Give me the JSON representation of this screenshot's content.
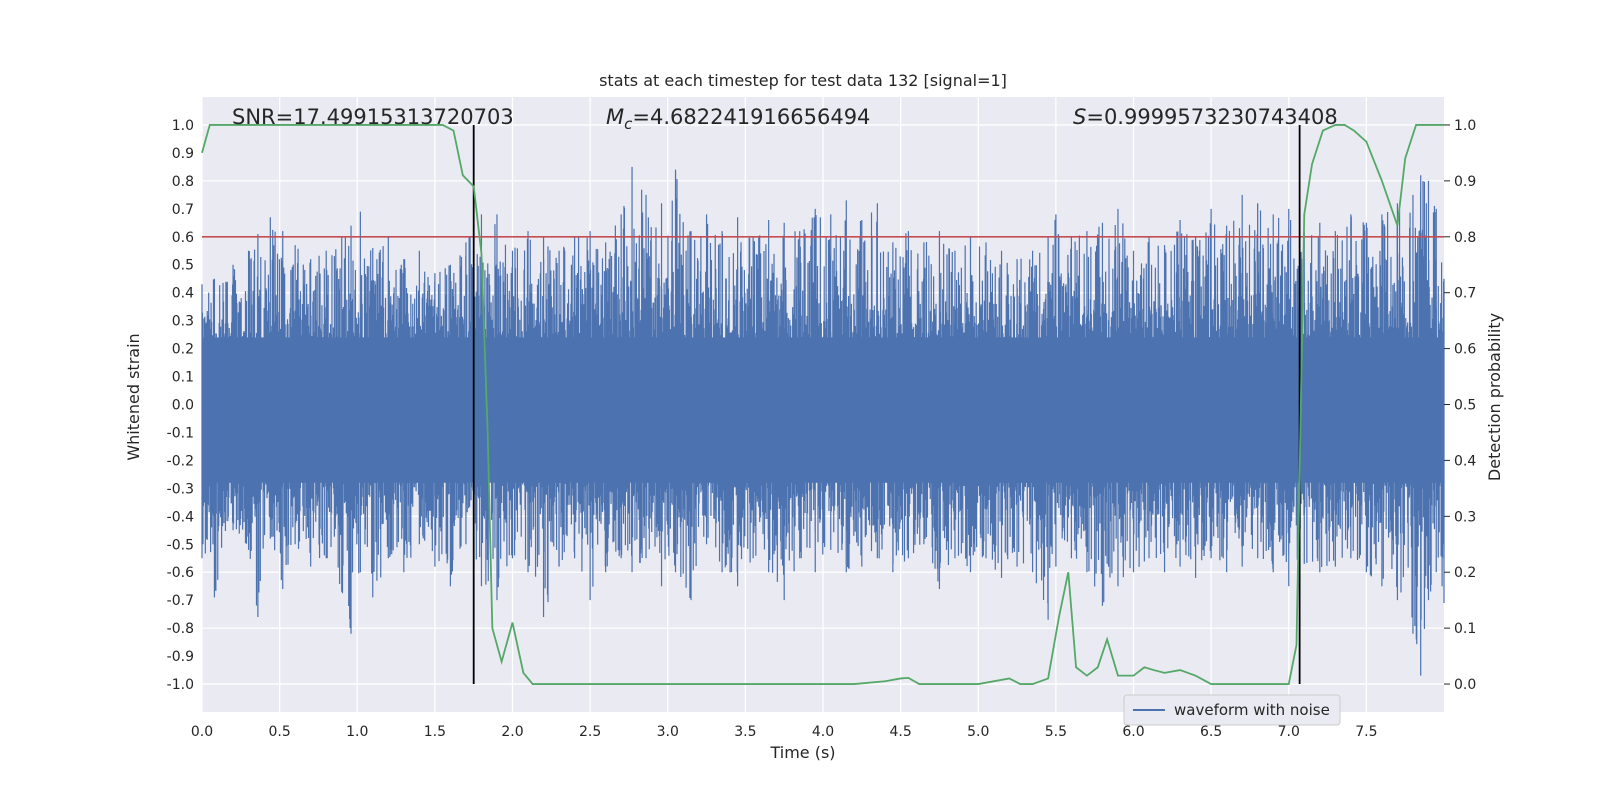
{
  "colors": {
    "background": "#eaeaf2",
    "grid": "#ffffff",
    "waveform": "#4c72b0",
    "probability": "#55a868",
    "threshold": "#c44e52",
    "marker": "#000000",
    "text": "#262626"
  },
  "chart_data": {
    "type": "line",
    "title": "stats at each timestep for test data 132 [signal=1]",
    "xlabel": "Time (s)",
    "ylabel": "Whitened strain",
    "y2label": "Detection probability",
    "xlim": [
      0,
      8
    ],
    "ylim": [
      -1.1,
      1.1
    ],
    "y2lim": [
      -0.05,
      1.05
    ],
    "grid": true,
    "xticks": [
      "0.0",
      "0.5",
      "1.0",
      "1.5",
      "2.0",
      "2.5",
      "3.0",
      "3.5",
      "4.0",
      "4.5",
      "5.0",
      "5.5",
      "6.0",
      "6.5",
      "7.0",
      "7.5"
    ],
    "yticks": [
      "1.0",
      "0.9",
      "0.8",
      "0.7",
      "0.6",
      "0.5",
      "0.4",
      "0.3",
      "0.2",
      "0.1",
      "0.0",
      "-0.1",
      "-0.2",
      "-0.3",
      "-0.4",
      "-0.5",
      "-0.6",
      "-0.7",
      "-0.8",
      "-0.9",
      "-1.0"
    ],
    "y2ticks": [
      "1.0",
      "0.9",
      "0.8",
      "0.7",
      "0.6",
      "0.5",
      "0.4",
      "0.3",
      "0.2",
      "0.1",
      "0.0"
    ],
    "annotations": {
      "snr": "SNR=17.49915313720703",
      "mc_symbol": "M",
      "mc_subscript": "c",
      "mc_value": "=4.682241916656494",
      "s_symbol": "S",
      "s_value": "=0.9999573230743408"
    },
    "legend": {
      "label": "waveform with noise",
      "placement": "lower-right"
    },
    "threshold_line": {
      "y2": 0.8
    },
    "markers": [
      1.75,
      7.07
    ],
    "series": [
      {
        "name": "waveform with noise",
        "axis": "left",
        "style": "dense noise, amplitude envelope ~0.4 with peaks to ~0.85 and troughs to ~-0.97",
        "peaks": [
          [
            0.0,
            0.43,
            -0.55
          ],
          [
            0.08,
            0.45,
            -0.69
          ],
          [
            0.2,
            0.5,
            -0.45
          ],
          [
            0.3,
            0.55,
            -0.52
          ],
          [
            0.36,
            0.61,
            -0.76
          ],
          [
            0.44,
            0.67,
            -0.48
          ],
          [
            0.52,
            0.62,
            -0.66
          ],
          [
            0.6,
            0.57,
            -0.5
          ],
          [
            0.7,
            0.52,
            -0.58
          ],
          [
            0.8,
            0.55,
            -0.55
          ],
          [
            0.9,
            0.6,
            -0.67
          ],
          [
            0.96,
            0.64,
            -0.82
          ],
          [
            1.02,
            0.69,
            -0.6
          ],
          [
            1.1,
            0.56,
            -0.69
          ],
          [
            1.2,
            0.6,
            -0.55
          ],
          [
            1.3,
            0.52,
            -0.6
          ],
          [
            1.4,
            0.55,
            -0.5
          ],
          [
            1.5,
            0.47,
            -0.58
          ],
          [
            1.6,
            0.5,
            -0.65
          ],
          [
            1.7,
            0.58,
            -0.5
          ],
          [
            1.8,
            0.68,
            -0.65
          ],
          [
            1.9,
            0.68,
            -0.7
          ],
          [
            2.0,
            0.55,
            -0.55
          ],
          [
            2.1,
            0.62,
            -0.6
          ],
          [
            2.2,
            0.6,
            -0.76
          ],
          [
            2.3,
            0.55,
            -0.58
          ],
          [
            2.4,
            0.6,
            -0.55
          ],
          [
            2.5,
            0.62,
            -0.7
          ],
          [
            2.6,
            0.58,
            -0.6
          ],
          [
            2.7,
            0.68,
            -0.55
          ],
          [
            2.77,
            0.85,
            -0.6
          ],
          [
            2.86,
            0.75,
            -0.55
          ],
          [
            2.96,
            0.72,
            -0.65
          ],
          [
            3.05,
            0.84,
            -0.6
          ],
          [
            3.15,
            0.62,
            -0.7
          ],
          [
            3.25,
            0.68,
            -0.5
          ],
          [
            3.35,
            0.62,
            -0.6
          ],
          [
            3.45,
            0.67,
            -0.65
          ],
          [
            3.55,
            0.6,
            -0.55
          ],
          [
            3.65,
            0.66,
            -0.6
          ],
          [
            3.75,
            0.65,
            -0.7
          ],
          [
            3.85,
            0.62,
            -0.55
          ],
          [
            3.95,
            0.7,
            -0.6
          ],
          [
            4.05,
            0.68,
            -0.52
          ],
          [
            4.15,
            0.73,
            -0.6
          ],
          [
            4.25,
            0.66,
            -0.58
          ],
          [
            4.35,
            0.72,
            -0.55
          ],
          [
            4.45,
            0.58,
            -0.6
          ],
          [
            4.55,
            0.62,
            -0.55
          ],
          [
            4.65,
            0.58,
            -0.5
          ],
          [
            4.75,
            0.62,
            -0.66
          ],
          [
            4.85,
            0.55,
            -0.55
          ],
          [
            4.95,
            0.6,
            -0.6
          ],
          [
            5.05,
            0.58,
            -0.55
          ],
          [
            5.15,
            0.55,
            -0.62
          ],
          [
            5.25,
            0.52,
            -0.58
          ],
          [
            5.35,
            0.55,
            -0.6
          ],
          [
            5.45,
            0.6,
            -0.77
          ],
          [
            5.5,
            0.68,
            -0.58
          ],
          [
            5.6,
            0.6,
            -0.55
          ],
          [
            5.7,
            0.62,
            -0.6
          ],
          [
            5.8,
            0.65,
            -0.72
          ],
          [
            5.9,
            0.7,
            -0.65
          ],
          [
            6.0,
            0.55,
            -0.6
          ],
          [
            6.1,
            0.6,
            -0.55
          ],
          [
            6.2,
            0.57,
            -0.6
          ],
          [
            6.3,
            0.66,
            -0.58
          ],
          [
            6.4,
            0.6,
            -0.62
          ],
          [
            6.5,
            0.7,
            -0.55
          ],
          [
            6.6,
            0.64,
            -0.6
          ],
          [
            6.7,
            0.75,
            -0.58
          ],
          [
            6.8,
            0.72,
            -0.55
          ],
          [
            6.9,
            0.68,
            -0.6
          ],
          [
            7.0,
            0.7,
            -0.65
          ],
          [
            7.1,
            0.62,
            -0.57
          ],
          [
            7.2,
            0.65,
            -0.6
          ],
          [
            7.3,
            0.62,
            -0.58
          ],
          [
            7.4,
            0.68,
            -0.55
          ],
          [
            7.5,
            0.65,
            -0.6
          ],
          [
            7.6,
            0.68,
            -0.65
          ],
          [
            7.7,
            0.72,
            -0.7
          ],
          [
            7.8,
            0.75,
            -0.82
          ],
          [
            7.85,
            0.82,
            -0.97
          ],
          [
            7.9,
            0.8,
            -0.7
          ],
          [
            7.95,
            0.7,
            -0.6
          ],
          [
            8.0,
            0.45,
            -0.71
          ]
        ]
      },
      {
        "name": "Detection probability",
        "axis": "right",
        "x": [
          0.0,
          0.05,
          0.1,
          0.3,
          0.5,
          0.8,
          1.0,
          1.3,
          1.55,
          1.62,
          1.68,
          1.75,
          1.8,
          1.84,
          1.87,
          1.93,
          2.0,
          2.07,
          2.13,
          2.2,
          2.4,
          2.6,
          3.0,
          3.5,
          4.0,
          4.2,
          4.4,
          4.5,
          4.55,
          4.62,
          4.7,
          4.8,
          5.0,
          5.2,
          5.27,
          5.35,
          5.45,
          5.52,
          5.58,
          5.63,
          5.7,
          5.77,
          5.83,
          5.9,
          5.95,
          6.0,
          6.07,
          6.13,
          6.2,
          6.3,
          6.4,
          6.5,
          6.6,
          6.8,
          7.0,
          7.05,
          7.1,
          7.15,
          7.22,
          7.3,
          7.36,
          7.42,
          7.5,
          7.6,
          7.7,
          7.75,
          7.82,
          7.9,
          8.0
        ],
        "y": [
          0.95,
          1.0,
          1.0,
          1.0,
          1.0,
          1.0,
          1.0,
          1.0,
          1.0,
          0.99,
          0.91,
          0.89,
          0.77,
          0.45,
          0.1,
          0.04,
          0.11,
          0.02,
          0.0,
          0.0,
          0.0,
          0.0,
          0.0,
          0.0,
          0.0,
          0.0,
          0.005,
          0.01,
          0.011,
          0.0,
          0.0,
          0.0,
          0.0,
          0.01,
          0.0,
          0.0,
          0.01,
          0.12,
          0.2,
          0.03,
          0.015,
          0.03,
          0.08,
          0.015,
          0.015,
          0.015,
          0.03,
          0.025,
          0.02,
          0.025,
          0.015,
          0.0,
          0.0,
          0.0,
          0.0,
          0.07,
          0.84,
          0.93,
          0.99,
          1.0,
          1.0,
          0.99,
          0.97,
          0.9,
          0.82,
          0.94,
          1.0,
          1.0,
          1.0
        ]
      }
    ]
  }
}
